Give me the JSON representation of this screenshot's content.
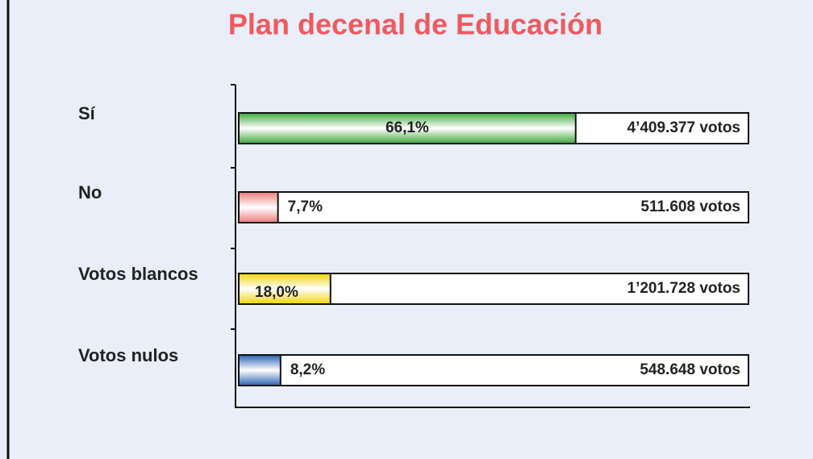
{
  "chart_data": {
    "type": "hbar",
    "title": "Plan decenal de Educación",
    "categories": [
      "Sí",
      "No",
      "Votos blancos",
      "Votos nulos"
    ],
    "values": [
      66.1,
      7.7,
      18.0,
      8.2
    ],
    "value_labels": [
      "66,1%",
      "7,7%",
      "18,0%",
      "8,2%"
    ],
    "votes": [
      4409377,
      511608,
      1201728,
      548648
    ],
    "vote_labels": [
      "4’409.377 votos",
      "511.608 votos",
      "1’201.728 votos",
      "548.648 votos"
    ],
    "colors": [
      "#3aa83a",
      "#ee7b7b",
      "#f2d400",
      "#2760b0"
    ],
    "xlim": [
      0,
      100
    ]
  }
}
